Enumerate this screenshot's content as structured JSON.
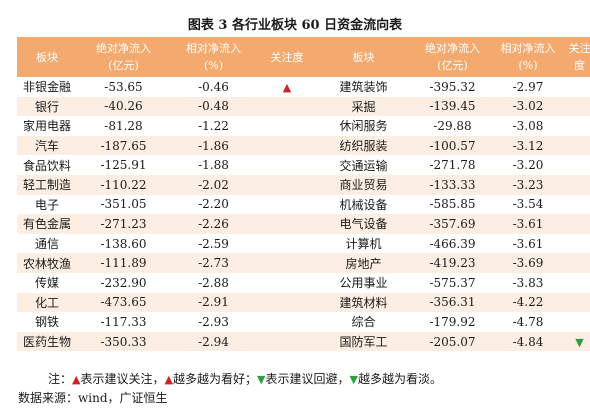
{
  "title": "图表 3  各行业板块 60 日资金流向表",
  "headers": {
    "sector": "板块",
    "abs_flow_line1": "绝对净流入",
    "abs_flow_line2": "(亿元)",
    "rel_flow_line1": "相对净流入",
    "rel_flow_line2": "(%)",
    "attention": "关注度",
    "attention_line1": "关注",
    "attention_line2": "度"
  },
  "symbols": {
    "up": "▲",
    "down": "▼"
  },
  "colors": {
    "header_bg": "#f4a96e",
    "row_alt_bg": "#fdeee3",
    "up": "#d42020",
    "down": "#2ea043"
  },
  "rows": [
    {
      "left": {
        "sector": "非银金融",
        "abs": "-53.65",
        "rel": "-0.46",
        "mark": "up"
      },
      "right": {
        "sector": "建筑装饰",
        "abs": "-395.32",
        "rel": "-2.97",
        "mark": ""
      }
    },
    {
      "left": {
        "sector": "银行",
        "abs": "-40.26",
        "rel": "-0.48",
        "mark": ""
      },
      "right": {
        "sector": "采掘",
        "abs": "-139.45",
        "rel": "-3.02",
        "mark": ""
      }
    },
    {
      "left": {
        "sector": "家用电器",
        "abs": "-81.28",
        "rel": "-1.22",
        "mark": ""
      },
      "right": {
        "sector": "休闲服务",
        "abs": "-29.88",
        "rel": "-3.08",
        "mark": ""
      }
    },
    {
      "left": {
        "sector": "汽车",
        "abs": "-187.65",
        "rel": "-1.86",
        "mark": ""
      },
      "right": {
        "sector": "纺织服装",
        "abs": "-100.57",
        "rel": "-3.12",
        "mark": ""
      }
    },
    {
      "left": {
        "sector": "食品饮料",
        "abs": "-125.91",
        "rel": "-1.88",
        "mark": ""
      },
      "right": {
        "sector": "交通运输",
        "abs": "-271.78",
        "rel": "-3.20",
        "mark": ""
      }
    },
    {
      "left": {
        "sector": "轻工制造",
        "abs": "-110.22",
        "rel": "-2.02",
        "mark": ""
      },
      "right": {
        "sector": "商业贸易",
        "abs": "-133.33",
        "rel": "-3.23",
        "mark": ""
      }
    },
    {
      "left": {
        "sector": "电子",
        "abs": "-351.05",
        "rel": "-2.20",
        "mark": ""
      },
      "right": {
        "sector": "机械设备",
        "abs": "-585.85",
        "rel": "-3.54",
        "mark": ""
      }
    },
    {
      "left": {
        "sector": "有色金属",
        "abs": "-271.23",
        "rel": "-2.26",
        "mark": ""
      },
      "right": {
        "sector": "电气设备",
        "abs": "-357.69",
        "rel": "-3.61",
        "mark": ""
      }
    },
    {
      "left": {
        "sector": "通信",
        "abs": "-138.60",
        "rel": "-2.59",
        "mark": ""
      },
      "right": {
        "sector": "计算机",
        "abs": "-466.39",
        "rel": "-3.61",
        "mark": ""
      }
    },
    {
      "left": {
        "sector": "农林牧渔",
        "abs": "-111.89",
        "rel": "-2.73",
        "mark": ""
      },
      "right": {
        "sector": "房地产",
        "abs": "-419.23",
        "rel": "-3.69",
        "mark": ""
      }
    },
    {
      "left": {
        "sector": "传媒",
        "abs": "-232.90",
        "rel": "-2.88",
        "mark": ""
      },
      "right": {
        "sector": "公用事业",
        "abs": "-575.37",
        "rel": "-3.83",
        "mark": ""
      }
    },
    {
      "left": {
        "sector": "化工",
        "abs": "-473.65",
        "rel": "-2.91",
        "mark": ""
      },
      "right": {
        "sector": "建筑材料",
        "abs": "-356.31",
        "rel": "-4.22",
        "mark": ""
      }
    },
    {
      "left": {
        "sector": "钢铁",
        "abs": "-117.33",
        "rel": "-2.93",
        "mark": ""
      },
      "right": {
        "sector": "综合",
        "abs": "-179.92",
        "rel": "-4.78",
        "mark": ""
      }
    },
    {
      "left": {
        "sector": "医药生物",
        "abs": "-350.33",
        "rel": "-2.94",
        "mark": ""
      },
      "right": {
        "sector": "国防军工",
        "abs": "-205.07",
        "rel": "-4.84",
        "mark": "down"
      }
    }
  ],
  "note": {
    "prefix": "注：",
    "up_text1": "表示建议关注，",
    "up_text2": "越多越为看好；",
    "down_text1": "表示建议回避，",
    "down_text2": "越多越为看淡。"
  },
  "source": "数据来源：wind，广证恒生"
}
